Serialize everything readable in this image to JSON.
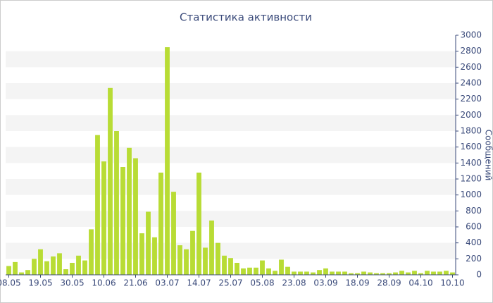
{
  "chart_data": {
    "type": "bar",
    "title": "Статистика активности",
    "y_label": "Сообщений",
    "categories": [
      "08.05",
      null,
      null,
      null,
      null,
      "19.05",
      null,
      null,
      null,
      null,
      "30.05",
      null,
      null,
      null,
      null,
      "10.06",
      null,
      null,
      null,
      null,
      "21.06",
      null,
      null,
      null,
      null,
      "03.07",
      null,
      null,
      null,
      null,
      "14.07",
      null,
      null,
      null,
      null,
      "25.07",
      null,
      null,
      null,
      null,
      "05.08",
      null,
      null,
      null,
      null,
      "23.08",
      null,
      null,
      null,
      null,
      "03.09",
      null,
      null,
      null,
      null,
      "18.09",
      null,
      null,
      null,
      null,
      "28.09",
      null,
      null,
      null,
      null,
      "04.10",
      null,
      null,
      null,
      null,
      "10.10"
    ],
    "values": [
      110,
      160,
      30,
      60,
      200,
      320,
      170,
      230,
      270,
      70,
      150,
      240,
      180,
      570,
      1750,
      1420,
      2340,
      1800,
      1350,
      1590,
      1460,
      520,
      790,
      470,
      1280,
      2850,
      1040,
      370,
      320,
      550,
      1280,
      340,
      680,
      400,
      240,
      210,
      150,
      80,
      90,
      90,
      180,
      80,
      50,
      190,
      100,
      40,
      40,
      40,
      30,
      60,
      80,
      40,
      40,
      40,
      20,
      20,
      40,
      30,
      20,
      20,
      20,
      30,
      50,
      30,
      50,
      20,
      50,
      40,
      40,
      50,
      30
    ],
    "color": "#b8dc35",
    "ylim": [
      0,
      3000
    ],
    "yticks": [
      0,
      200,
      400,
      600,
      800,
      1000,
      1200,
      1400,
      1600,
      1800,
      2000,
      2200,
      2400,
      2600,
      2800,
      3000
    ],
    "grid": true
  }
}
